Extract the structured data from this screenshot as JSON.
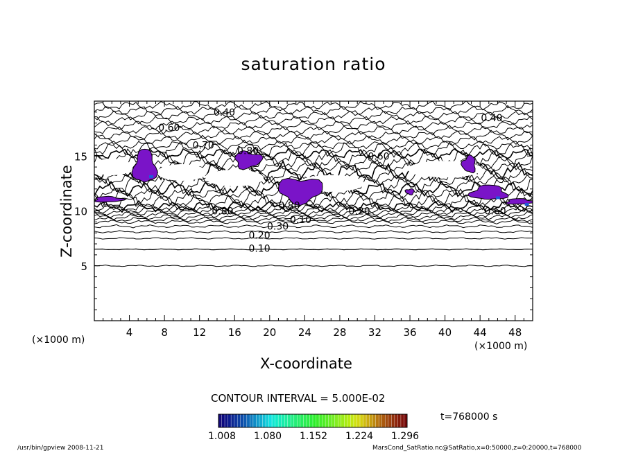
{
  "title": "saturation ratio",
  "xlabel": "X-coordinate",
  "ylabel": "Z-coordinate",
  "x_unit": "(×1000 m)",
  "z_unit": "(×1000 m)",
  "contour_interval_text": "CONTOUR INTERVAL = 5.000E-02",
  "time_text": "t=768000 s",
  "footer_left": "/usr/bin/gpview   2008-11-21",
  "footer_right": "MarsCond_SatRatio.nc@SatRatio,x=0:50000,z=0:20000,t=768000",
  "colorbar": {
    "range": [
      1.008,
      1.296
    ],
    "tick_labels": [
      "1.008",
      "1.080",
      "1.152",
      "1.224",
      "1.296"
    ]
  },
  "chart_data": {
    "type": "contour",
    "title": "saturation ratio",
    "xlabel": "X-coordinate",
    "ylabel": "Z-coordinate",
    "xlim": [
      0,
      50
    ],
    "ylim": [
      0,
      20
    ],
    "x_ticks": [
      4,
      8,
      12,
      16,
      20,
      24,
      28,
      32,
      36,
      40,
      44,
      48
    ],
    "y_ticks": [
      5,
      10,
      15
    ],
    "contour_interval": 0.05,
    "contour_labels": [
      {
        "text": "0.40",
        "x": 13.6,
        "z": 19.0
      },
      {
        "text": "0.40",
        "x": 44.1,
        "z": 18.5
      },
      {
        "text": "0.60",
        "x": 7.3,
        "z": 17.6
      },
      {
        "text": "0.70",
        "x": 11.2,
        "z": 16.0
      },
      {
        "text": "0.80",
        "x": 16.3,
        "z": 15.5
      },
      {
        "text": "0.60",
        "x": 31.2,
        "z": 15.0
      },
      {
        "text": "0.80",
        "x": 13.4,
        "z": 10.0
      },
      {
        "text": "0.80",
        "x": 21.0,
        "z": 10.5
      },
      {
        "text": "0.20",
        "x": 29.0,
        "z": 10.0
      },
      {
        "text": "0.10",
        "x": 22.3,
        "z": 9.2
      },
      {
        "text": "0.30",
        "x": 19.7,
        "z": 8.6
      },
      {
        "text": "0.20",
        "x": 17.6,
        "z": 7.8
      },
      {
        "text": "0.10",
        "x": 17.6,
        "z": 6.6
      },
      {
        "text": "0.60",
        "x": 44.5,
        "z": 10.0
      }
    ],
    "supersaturated_regions": [
      {
        "x": [
          4.5,
          7.0
        ],
        "z": [
          12.5,
          15.5
        ],
        "max_value": 1.1
      },
      {
        "x": [
          0.0,
          3.2
        ],
        "z": [
          10.8,
          11.3
        ],
        "max_value": 1.05
      },
      {
        "x": [
          16.0,
          19.0
        ],
        "z": [
          13.9,
          15.4
        ],
        "max_value": 1.05
      },
      {
        "x": [
          21.0,
          26.0
        ],
        "z": [
          10.8,
          13.0
        ],
        "max_value": 1.05
      },
      {
        "x": [
          35.5,
          36.5
        ],
        "z": [
          11.5,
          12.0
        ],
        "max_value": 1.05
      },
      {
        "x": [
          42.0,
          43.5
        ],
        "z": [
          13.5,
          15.0
        ],
        "max_value": 1.05
      },
      {
        "x": [
          43.0,
          47.0
        ],
        "z": [
          11.0,
          12.3
        ],
        "max_value": 1.1
      },
      {
        "x": [
          47.0,
          50.0
        ],
        "z": [
          10.6,
          11.1
        ],
        "max_value": 1.1
      }
    ]
  }
}
